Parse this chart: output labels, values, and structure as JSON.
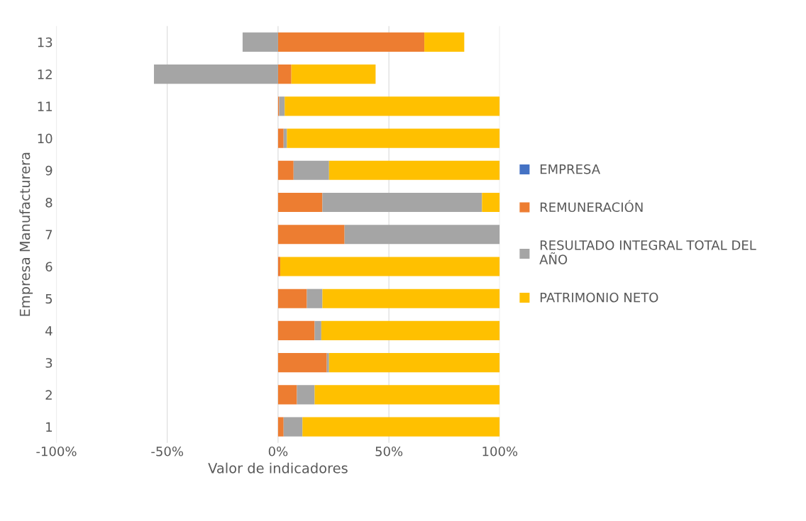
{
  "chart_data": {
    "type": "bar",
    "orientation": "horizontal",
    "stacked": true,
    "xlabel": "Valor de indicadores",
    "ylabel": "Empresa Manufacturera",
    "categories": [
      "13",
      "12",
      "11",
      "10",
      "9",
      "8",
      "7",
      "6",
      "5",
      "4",
      "3",
      "2",
      "1"
    ],
    "series": [
      {
        "name": "EMPRESA",
        "color": "#4472c4",
        "values": [
          0,
          0,
          0,
          0,
          0,
          0,
          0,
          0,
          0,
          0,
          0,
          0,
          0
        ]
      },
      {
        "name": "REMUNERACIÓN",
        "color": "#ed7d31",
        "values": [
          66,
          6,
          0.5,
          2.5,
          7,
          20,
          30,
          1,
          13,
          16.5,
          22,
          8.5,
          2.5
        ]
      },
      {
        "name": "RESULTADO INTEGRAL TOTAL DEL AÑO",
        "color": "#a5a5a5",
        "values": [
          -16,
          -56,
          2.5,
          1.5,
          16,
          72,
          70,
          0,
          7,
          3,
          1,
          8,
          8.5
        ]
      },
      {
        "name": "PATRIMONIO NETO",
        "color": "#ffc000",
        "values": [
          18,
          38,
          97,
          96,
          77,
          8,
          0,
          99,
          80,
          80.5,
          77,
          83.5,
          89
        ]
      }
    ],
    "xlim": [
      -100,
      100
    ],
    "xticks": [
      {
        "value": -100,
        "label": "-100%"
      },
      {
        "value": -50,
        "label": "-50%"
      },
      {
        "value": 0,
        "label": "0%"
      },
      {
        "value": 50,
        "label": "50%"
      },
      {
        "value": 100,
        "label": "100%"
      }
    ],
    "grid": "x",
    "legend": "right"
  }
}
